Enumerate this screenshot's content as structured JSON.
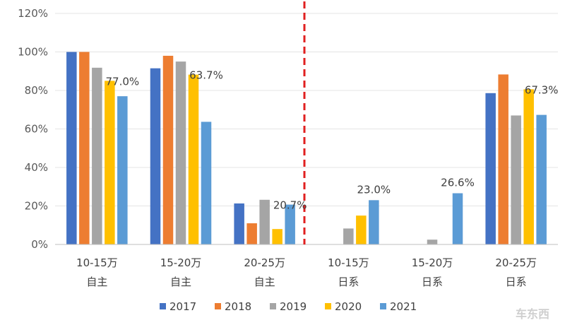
{
  "chart_data": {
    "type": "bar",
    "title": "",
    "xlabel": "",
    "ylabel": "",
    "ylim": [
      0,
      1.2
    ],
    "y_ticks": [
      "0%",
      "20%",
      "40%",
      "60%",
      "80%",
      "100%",
      "120%"
    ],
    "categories": [
      {
        "line1": "10-15万",
        "line2": "自主"
      },
      {
        "line1": "15-20万",
        "line2": "自主"
      },
      {
        "line1": "20-25万",
        "line2": "自主"
      },
      {
        "line1": "10-15万",
        "line2": "日系"
      },
      {
        "line1": "15-20万",
        "line2": "日系"
      },
      {
        "line1": "20-25万",
        "line2": "日系"
      }
    ],
    "series": [
      {
        "name": "2017",
        "color": "#4472C4",
        "values": [
          1.0,
          0.915,
          0.213,
          null,
          null,
          0.786
        ]
      },
      {
        "name": "2018",
        "color": "#ED7D31",
        "values": [
          1.0,
          0.98,
          0.11,
          null,
          null,
          0.883
        ]
      },
      {
        "name": "2019",
        "color": "#A5A5A5",
        "values": [
          0.918,
          0.95,
          0.232,
          0.083,
          0.025,
          0.67
        ]
      },
      {
        "name": "2020",
        "color": "#FFC000",
        "values": [
          0.85,
          0.882,
          0.08,
          0.15,
          null,
          0.806
        ]
      },
      {
        "name": "2021",
        "color": "#5B9BD5",
        "values": [
          0.77,
          0.637,
          0.207,
          0.23,
          0.266,
          0.673
        ]
      }
    ],
    "data_labels": [
      "77.0%",
      "63.7%",
      "20.7%",
      "23.0%",
      "26.6%",
      "67.3%"
    ],
    "divider": {
      "after_category": 2,
      "color": "#E02020",
      "style": "dashed"
    },
    "legend_position": "bottom"
  },
  "watermark": "车东西"
}
